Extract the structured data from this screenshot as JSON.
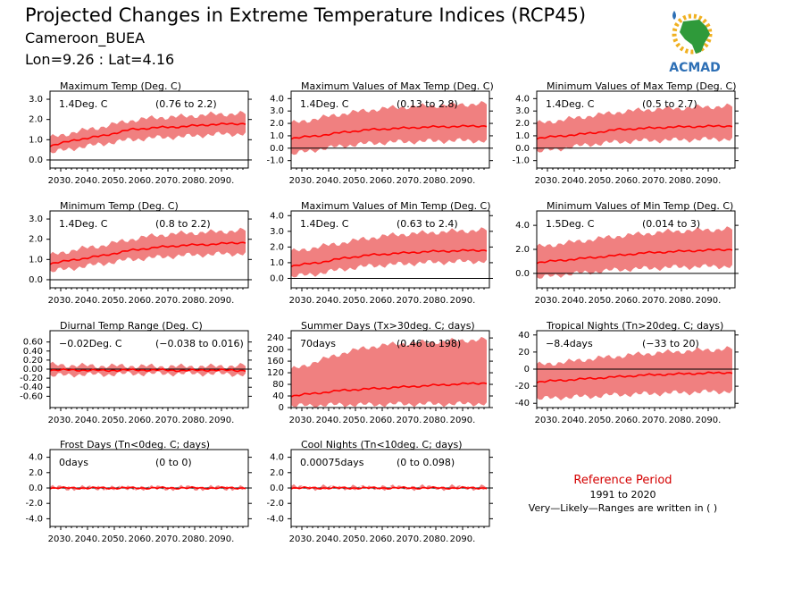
{
  "header": {
    "title": "Projected Changes in Extreme Temperature Indices (RCP45)",
    "location": "Cameroon_BUEA",
    "coords": "Lon=9.26 : Lat=4.16"
  },
  "logo": {
    "text": "ACMAD"
  },
  "reference": {
    "title": "Reference Period",
    "years": "1991 to 2020",
    "note": "Very—Likely—Ranges are written in ( )"
  },
  "colors": {
    "band": "#f08080",
    "line": "#ff0000",
    "accent": "#d40000"
  },
  "chart_data": [
    {
      "type": "area",
      "title": "Maximum Temp (Deg. C)",
      "value_label": "1.4Deg. C",
      "range_label": "(0.76 to 2.2)",
      "x_ticks": [
        "2030.",
        "2040.",
        "2050.",
        "2060.",
        "2070.",
        "2080.",
        "2090."
      ],
      "x_range": [
        2026,
        2100
      ],
      "ylim": [
        -0.4,
        3.4
      ],
      "y_ticks": [
        "0.0",
        "1.0",
        "2.0",
        "3.0"
      ],
      "series": [
        {
          "values": [
            0.7,
            1.0,
            1.2,
            1.5,
            1.6,
            1.65,
            1.75,
            1.8
          ]
        },
        {
          "values": [
            0.35,
            0.6,
            0.8,
            1.0,
            1.1,
            1.15,
            1.25,
            1.3
          ]
        },
        {
          "values": [
            1.1,
            1.4,
            1.65,
            1.95,
            2.1,
            2.15,
            2.25,
            2.3
          ]
        }
      ]
    },
    {
      "type": "area",
      "title": "Maximum Values of Max Temp (Deg. C)",
      "value_label": "1.4Deg. C",
      "range_label": "(0.13 to 2.8)",
      "x_ticks": [
        "2030.",
        "2040.",
        "2050.",
        "2060.",
        "2070.",
        "2080.",
        "2090."
      ],
      "x_range": [
        2026,
        2100
      ],
      "ylim": [
        -1.6,
        4.6
      ],
      "y_ticks": [
        "-1.0",
        "0.0",
        "1.0",
        "2.0",
        "3.0",
        "4.0"
      ],
      "series": [
        {
          "values": [
            0.8,
            1.0,
            1.3,
            1.5,
            1.6,
            1.7,
            1.75,
            1.8
          ]
        },
        {
          "values": [
            -0.5,
            -0.1,
            0.2,
            0.4,
            0.5,
            0.55,
            0.6,
            0.6
          ]
        },
        {
          "values": [
            2.0,
            2.4,
            2.8,
            3.1,
            3.3,
            3.4,
            3.5,
            3.6
          ]
        }
      ]
    },
    {
      "type": "area",
      "title": "Minimum Values of Max Temp (Deg. C)",
      "value_label": "1.4Deg. C",
      "range_label": "(0.5 to 2.7)",
      "x_ticks": [
        "2030.",
        "2040.",
        "2050.",
        "2060.",
        "2070.",
        "2080.",
        "2090."
      ],
      "x_range": [
        2026,
        2100
      ],
      "ylim": [
        -1.6,
        4.6
      ],
      "y_ticks": [
        "-1.0",
        "0.0",
        "1.0",
        "2.0",
        "3.0",
        "4.0"
      ],
      "series": [
        {
          "values": [
            0.8,
            1.0,
            1.2,
            1.5,
            1.6,
            1.7,
            1.75,
            1.8
          ]
        },
        {
          "values": [
            -0.3,
            0.0,
            0.3,
            0.5,
            0.6,
            0.65,
            0.7,
            0.75
          ]
        },
        {
          "values": [
            2.0,
            2.3,
            2.6,
            2.9,
            3.1,
            3.2,
            3.3,
            3.4
          ]
        }
      ]
    },
    {
      "type": "area",
      "title": "Minimum Temp (Deg. C)",
      "value_label": "1.4Deg. C",
      "range_label": "(0.8 to 2.2)",
      "x_ticks": [
        "2030.",
        "2040.",
        "2050.",
        "2060.",
        "2070.",
        "2080.",
        "2090."
      ],
      "x_range": [
        2026,
        2100
      ],
      "ylim": [
        -0.4,
        3.4
      ],
      "y_ticks": [
        "0.0",
        "1.0",
        "2.0",
        "3.0"
      ],
      "series": [
        {
          "values": [
            0.8,
            1.0,
            1.2,
            1.45,
            1.6,
            1.7,
            1.75,
            1.85
          ]
        },
        {
          "values": [
            0.4,
            0.6,
            0.8,
            1.0,
            1.1,
            1.2,
            1.25,
            1.3
          ]
        },
        {
          "values": [
            1.2,
            1.5,
            1.7,
            2.0,
            2.2,
            2.3,
            2.35,
            2.45
          ]
        }
      ]
    },
    {
      "type": "area",
      "title": "Maximum Values of Min Temp (Deg. C)",
      "value_label": "1.4Deg. C",
      "range_label": "(0.63 to 2.4)",
      "x_ticks": [
        "2030.",
        "2040.",
        "2050.",
        "2060.",
        "2070.",
        "2080.",
        "2090."
      ],
      "x_range": [
        2026,
        2100
      ],
      "ylim": [
        -0.6,
        4.3
      ],
      "y_ticks": [
        "0.0",
        "1.0",
        "2.0",
        "3.0",
        "4.0"
      ],
      "series": [
        {
          "values": [
            0.8,
            1.0,
            1.3,
            1.5,
            1.6,
            1.7,
            1.75,
            1.8
          ]
        },
        {
          "values": [
            0.1,
            0.3,
            0.6,
            0.8,
            0.9,
            1.0,
            1.05,
            1.1
          ]
        },
        {
          "values": [
            1.7,
            2.0,
            2.3,
            2.6,
            2.8,
            2.9,
            3.0,
            3.1
          ]
        }
      ]
    },
    {
      "type": "area",
      "title": "Minimum Values of Min Temp (Deg. C)",
      "value_label": "1.5Deg. C",
      "range_label": "(0.014 to 3)",
      "x_ticks": [
        "2030.",
        "2040.",
        "2050.",
        "2060.",
        "2070.",
        "2080.",
        "2090."
      ],
      "x_range": [
        2026,
        2100
      ],
      "ylim": [
        -1.2,
        5.2
      ],
      "y_ticks": [
        "0.0",
        "2.0",
        "4.0"
      ],
      "series": [
        {
          "values": [
            0.9,
            1.1,
            1.3,
            1.5,
            1.7,
            1.8,
            1.9,
            2.0
          ]
        },
        {
          "values": [
            -0.4,
            -0.1,
            0.1,
            0.3,
            0.4,
            0.5,
            0.55,
            0.6
          ]
        },
        {
          "values": [
            2.2,
            2.5,
            2.8,
            3.1,
            3.3,
            3.5,
            3.6,
            3.7
          ]
        }
      ]
    },
    {
      "type": "area",
      "title": "Diurnal Temp Range (Deg. C)",
      "value_label": "−0.02Deg. C",
      "range_label": "(−0.038 to 0.016)",
      "x_ticks": [
        "2030.",
        "2040.",
        "2050.",
        "2060.",
        "2070.",
        "2080.",
        "2090."
      ],
      "x_range": [
        2026,
        2100
      ],
      "ylim": [
        -0.85,
        0.85
      ],
      "y_ticks": [
        "-0.60",
        "-0.40",
        "-0.20",
        "0.00",
        "0.20",
        "0.40",
        "0.60"
      ],
      "series": [
        {
          "values": [
            -0.02,
            -0.02,
            -0.03,
            -0.02,
            -0.02,
            -0.03,
            -0.02,
            -0.03
          ]
        },
        {
          "values": [
            -0.15,
            -0.12,
            -0.12,
            -0.1,
            -0.1,
            -0.1,
            -0.1,
            -0.12
          ]
        },
        {
          "values": [
            0.1,
            0.08,
            0.07,
            0.07,
            0.06,
            0.06,
            0.06,
            0.08
          ]
        }
      ]
    },
    {
      "type": "area",
      "title": "Summer Days (Tx>30deg. C; days)",
      "value_label": "70days",
      "range_label": "(0.46 to 198)",
      "x_ticks": [
        "2030.",
        "2040.",
        "2050.",
        "2060.",
        "2070.",
        "2080.",
        "2090."
      ],
      "x_range": [
        2026,
        2100
      ],
      "ylim": [
        0,
        265
      ],
      "y_ticks": [
        "0",
        "40",
        "80",
        "120",
        "160",
        "200",
        "240"
      ],
      "series": [
        {
          "values": [
            40,
            50,
            60,
            65,
            70,
            75,
            80,
            85
          ]
        },
        {
          "values": [
            5,
            8,
            10,
            10,
            12,
            12,
            12,
            14
          ]
        },
        {
          "values": [
            130,
            160,
            190,
            210,
            220,
            225,
            230,
            235
          ]
        }
      ]
    },
    {
      "type": "area",
      "title": "Tropical Nights (Tn>20deg. C; days)",
      "value_label": "−8.4days",
      "range_label": "(−33 to 20)",
      "x_ticks": [
        "2030.",
        "2040.",
        "2050.",
        "2060.",
        "2070.",
        "2080.",
        "2090."
      ],
      "x_range": [
        2026,
        2100
      ],
      "ylim": [
        -45,
        45
      ],
      "y_ticks": [
        "-40",
        "-20",
        "0",
        "20",
        "40"
      ],
      "series": [
        {
          "values": [
            -15,
            -13,
            -11,
            -9,
            -7,
            -6,
            -5,
            -4
          ]
        },
        {
          "values": [
            -35,
            -33,
            -32,
            -30,
            -29,
            -28,
            -27,
            -26
          ]
        },
        {
          "values": [
            5,
            8,
            12,
            15,
            18,
            20,
            22,
            24
          ]
        }
      ]
    },
    {
      "type": "area",
      "title": "Frost Days (Tn<0deg. C; days)",
      "value_label": "0days",
      "range_label": "(0 to 0)",
      "x_ticks": [
        "2030.",
        "2040.",
        "2050.",
        "2060.",
        "2070.",
        "2080.",
        "2090."
      ],
      "x_range": [
        2026,
        2100
      ],
      "ylim": [
        -5,
        5
      ],
      "y_ticks": [
        "-4.0",
        "-2.0",
        "0.0",
        "2.0",
        "4.0"
      ],
      "series": [
        {
          "values": [
            0,
            0,
            0,
            0,
            0,
            0,
            0,
            0
          ]
        },
        {
          "values": [
            0,
            0,
            0,
            0,
            0,
            0,
            0,
            0
          ]
        },
        {
          "values": [
            0,
            0,
            0,
            0,
            0,
            0,
            0,
            0
          ]
        }
      ]
    },
    {
      "type": "area",
      "title": "Cool Nights (Tn<10deg. C; days)",
      "value_label": "0.00075days",
      "range_label": "(0 to 0.098)",
      "x_ticks": [
        "2030.",
        "2040.",
        "2050.",
        "2060.",
        "2070.",
        "2080.",
        "2090."
      ],
      "x_range": [
        2026,
        2100
      ],
      "ylim": [
        -5,
        5
      ],
      "y_ticks": [
        "-4.0",
        "-2.0",
        "0.0",
        "2.0",
        "4.0"
      ],
      "series": [
        {
          "values": [
            0,
            0,
            0,
            0,
            0,
            0,
            0,
            0
          ]
        },
        {
          "values": [
            0,
            0,
            0,
            0,
            0,
            0,
            0,
            0
          ]
        },
        {
          "values": [
            0.1,
            0.1,
            0.1,
            0.1,
            0.1,
            0.1,
            0.1,
            0.1
          ]
        }
      ]
    }
  ]
}
